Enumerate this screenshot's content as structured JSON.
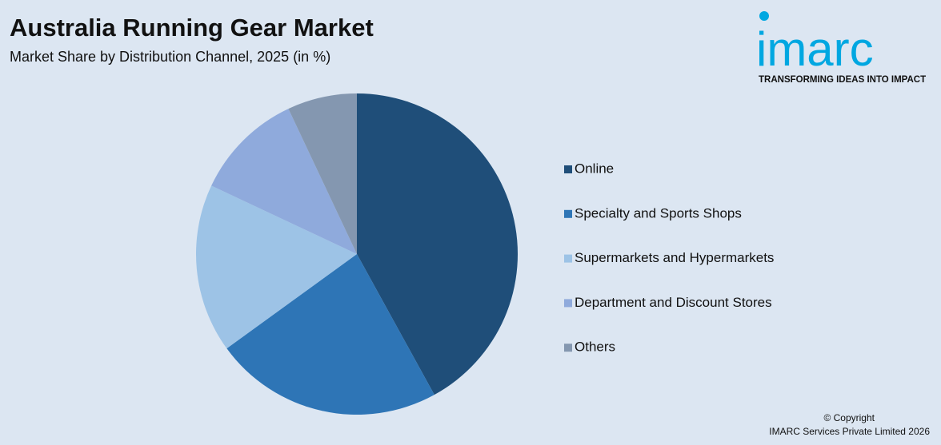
{
  "chart_data": {
    "type": "pie",
    "title": "Australia Running Gear Market",
    "subtitle": "Market Share by Distribution Channel, 2025 (in %)",
    "categories": [
      "Online",
      "Specialty and Sports Shops",
      "Supermarkets and Hypermarkets",
      "Department and Discount Stores",
      "Others"
    ],
    "values": [
      42,
      23,
      17,
      11,
      7
    ],
    "colors": [
      "#1f4e79",
      "#2e75b6",
      "#9dc3e6",
      "#8faadc",
      "#8497b0"
    ],
    "legend": "right"
  },
  "logo": {
    "name": "imarc",
    "tagline": "TRANSFORMING IDEAS INTO IMPACT"
  },
  "footer": {
    "copyright": "© Copyright",
    "company": "IMARC Services Private Limited 2026"
  }
}
